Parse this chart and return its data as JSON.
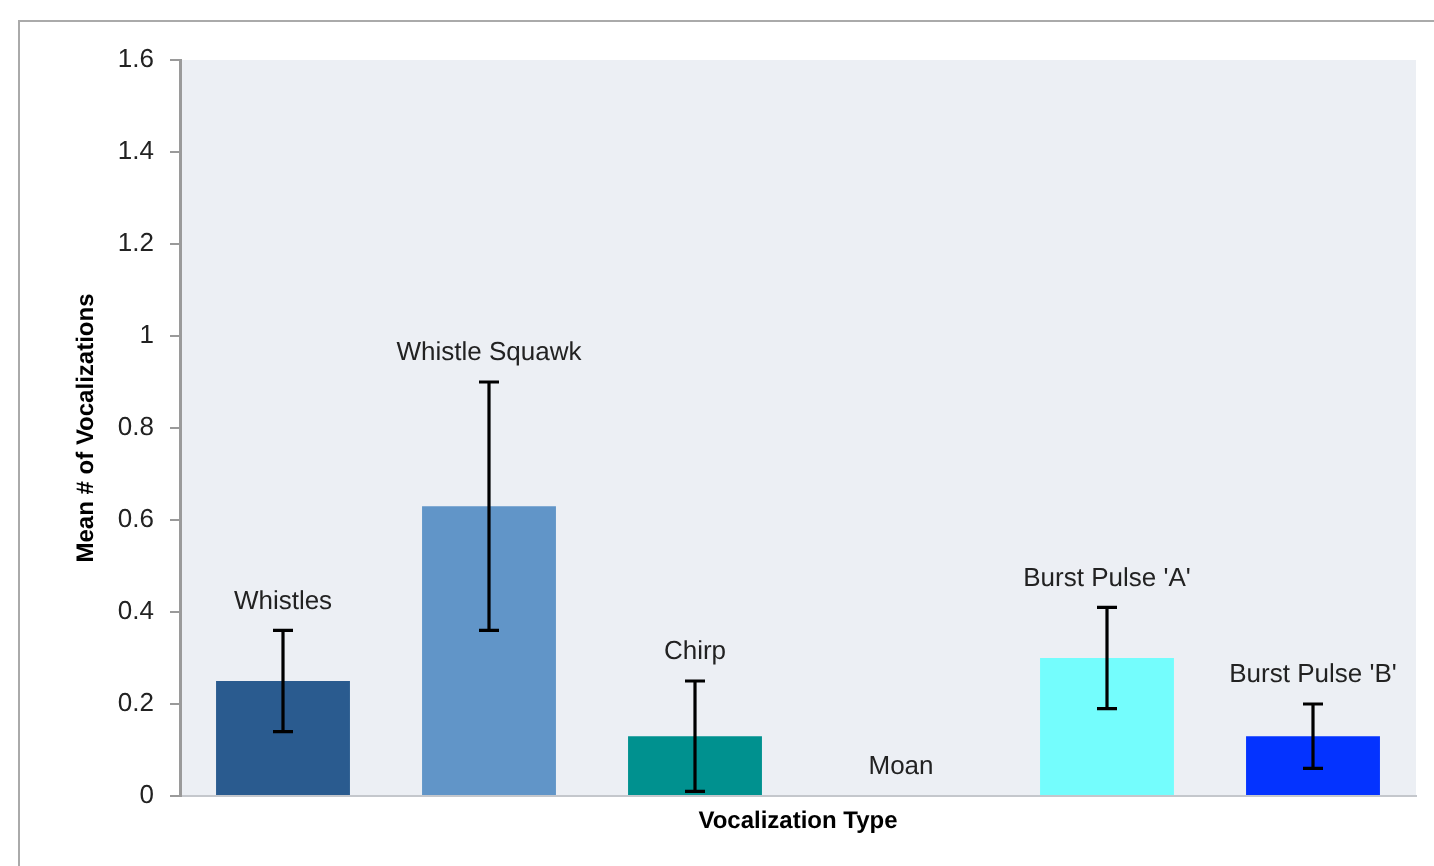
{
  "chart_data": {
    "type": "bar",
    "xlabel": "Vocalization Type",
    "ylabel": "Mean # of Vocalizations",
    "categories": [
      null,
      null,
      null,
      null,
      null,
      null
    ],
    "values": [
      0.25,
      0.63,
      0.13,
      0,
      0.3,
      0.13
    ],
    "errors": [
      0.11,
      0.27,
      0.12,
      null,
      0.11,
      0.07
    ],
    "colors": [
      "#2a5b8f",
      "#6195c8",
      "#00918f",
      null,
      "#74fdfd",
      "#0433ff"
    ],
    "annotations": [
      "Whistles",
      "Whistle Squawk",
      "Chirp",
      "Moan",
      "Burst Pulse 'A'",
      "Burst Pulse 'B'"
    ],
    "ylim": [
      0,
      1.6
    ],
    "yticks": [
      0,
      0.2,
      0.4,
      0.6,
      0.8,
      1,
      1.2,
      1.4,
      1.6
    ],
    "grid": false,
    "tick_labels": "y"
  }
}
